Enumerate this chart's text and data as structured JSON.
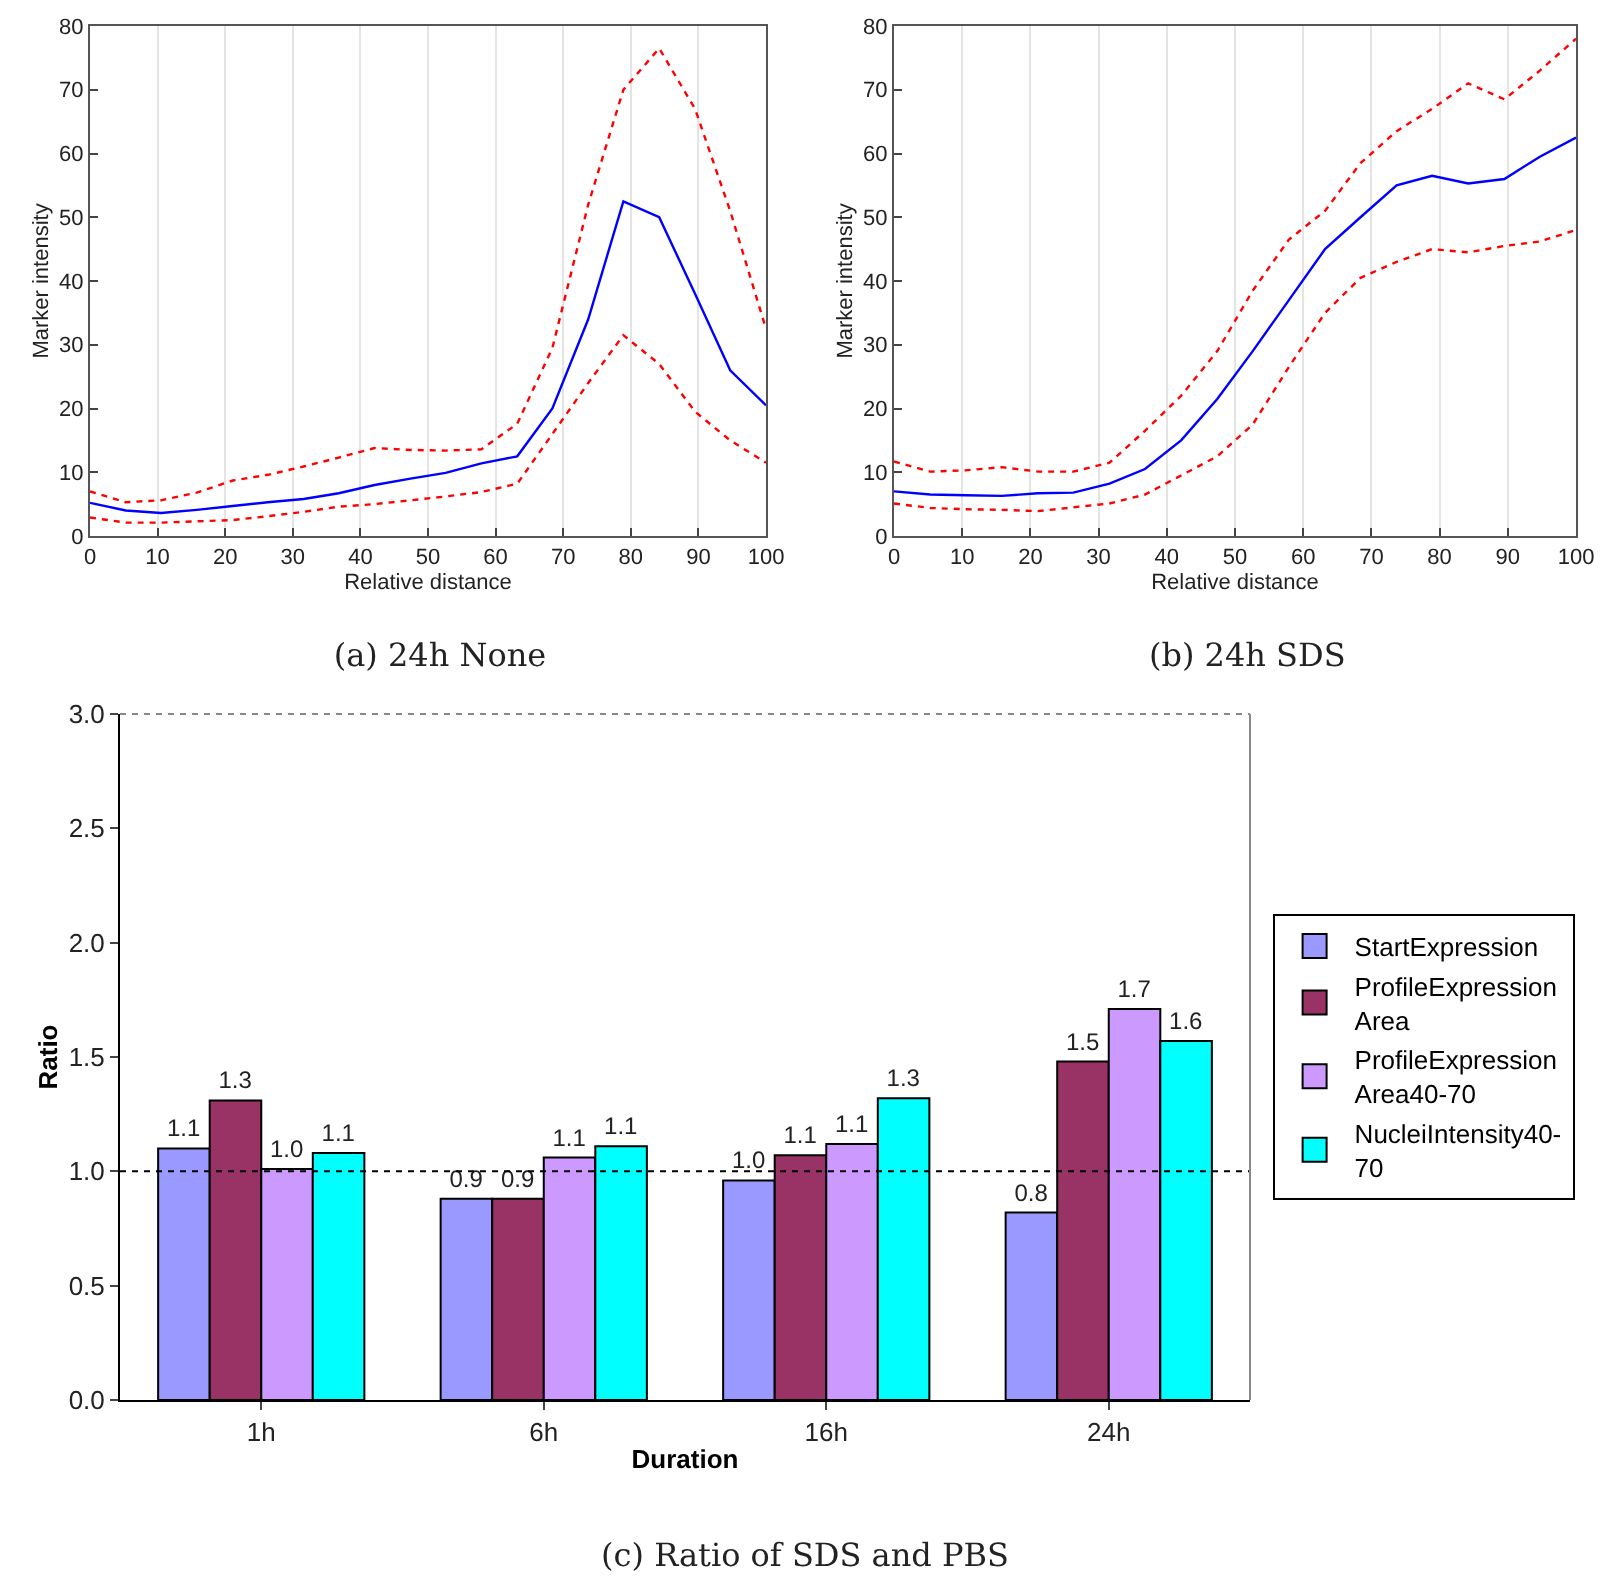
{
  "chart_data": [
    {
      "type": "line",
      "title": "(a) 24h None",
      "xlabel": "Relative distance",
      "ylabel": "Marker intensity",
      "x": [
        0,
        5.3,
        10.5,
        15.8,
        21.1,
        26.3,
        31.6,
        36.8,
        42.1,
        47.4,
        52.6,
        57.9,
        63.2,
        68.4,
        73.7,
        78.9,
        84.2,
        89.5,
        94.7,
        100
      ],
      "series": [
        {
          "color": "#ff0000",
          "line_style": "dotted",
          "values": [
            7.0,
            5.3,
            5.6,
            6.8,
            8.7,
            9.6,
            10.9,
            12.3,
            13.8,
            13.5,
            13.4,
            13.6,
            17.6,
            29.5,
            52,
            70,
            76.5,
            67,
            51,
            32.5
          ]
        },
        {
          "color": "#0000ff",
          "line_style": "solid",
          "values": [
            5.2,
            4.0,
            3.6,
            4.1,
            4.7,
            5.3,
            5.8,
            6.7,
            8.0,
            9.0,
            9.9,
            11.4,
            12.5,
            20,
            34,
            52.5,
            50,
            38,
            26,
            20.5
          ]
        },
        {
          "color": "#ff0000",
          "line_style": "dotted",
          "values": [
            2.9,
            2.1,
            2.1,
            2.3,
            2.5,
            3.1,
            3.8,
            4.6,
            5.0,
            5.6,
            6.2,
            6.9,
            8.2,
            16,
            24,
            31.5,
            27,
            19.5,
            15,
            11.5
          ]
        }
      ],
      "xlim": [
        0,
        100
      ],
      "xticks": [
        0,
        10,
        20,
        30,
        40,
        50,
        60,
        70,
        80,
        90,
        100
      ],
      "ylim": [
        0,
        80
      ],
      "yticks": [
        0,
        10,
        20,
        30,
        40,
        50,
        60,
        70,
        80
      ],
      "grid": "x",
      "legend": false
    },
    {
      "type": "line",
      "title": "(b) 24h SDS",
      "xlabel": "Relative distance",
      "ylabel": "Marker intensity",
      "x": [
        0,
        5.3,
        10.5,
        15.8,
        21.1,
        26.3,
        31.6,
        36.8,
        42.1,
        47.4,
        52.6,
        57.9,
        63.2,
        68.4,
        73.7,
        78.9,
        84.2,
        89.5,
        94.7,
        100
      ],
      "series": [
        {
          "color": "#ff0000",
          "line_style": "dotted",
          "values": [
            11.7,
            10.1,
            10.3,
            10.8,
            10.1,
            10.1,
            11.5,
            16.5,
            22,
            29,
            38.5,
            46.5,
            51,
            58.5,
            63.5,
            67,
            71,
            68.5,
            73,
            78
          ]
        },
        {
          "color": "#0000ff",
          "line_style": "solid",
          "values": [
            7,
            6.5,
            6.4,
            6.3,
            6.7,
            6.8,
            8.2,
            10.5,
            15,
            21.5,
            29,
            37,
            45,
            50,
            55,
            56.5,
            55.3,
            56,
            59.5,
            62.5
          ]
        },
        {
          "color": "#ff0000",
          "line_style": "dotted",
          "values": [
            5.1,
            4.4,
            4.2,
            4.1,
            3.9,
            4.5,
            5.1,
            6.5,
            9.5,
            12.5,
            17.5,
            26.5,
            35,
            40.5,
            43,
            45,
            44.5,
            45.5,
            46.2,
            48
          ]
        }
      ],
      "xlim": [
        0,
        100
      ],
      "xticks": [
        0,
        10,
        20,
        30,
        40,
        50,
        60,
        70,
        80,
        90,
        100
      ],
      "ylim": [
        0,
        80
      ],
      "yticks": [
        0,
        10,
        20,
        30,
        40,
        50,
        60,
        70,
        80
      ],
      "grid": "x",
      "legend": false
    },
    {
      "type": "bar",
      "title": "(c) Ratio of SDS and PBS",
      "xlabel": "Duration",
      "ylabel": "Ratio",
      "categories": [
        "1h",
        "6h",
        "16h",
        "24h"
      ],
      "series": [
        {
          "name": "StartExpression",
          "color": "#9999ff",
          "values": [
            1.1,
            0.88,
            0.96,
            0.82
          ],
          "value_labels": [
            "1.1",
            "0.9",
            "1.0",
            "0.8"
          ]
        },
        {
          "name": "ProfileExpressionArea",
          "color": "#993366",
          "values": [
            1.31,
            0.88,
            1.07,
            1.48
          ],
          "value_labels": [
            "1.3",
            "0.9",
            "1.1",
            "1.5"
          ]
        },
        {
          "name": "ProfileExpressionArea40-70",
          "color": "#cc99ff",
          "values": [
            1.01,
            1.06,
            1.12,
            1.71
          ],
          "value_labels": [
            "1.0",
            "1.1",
            "1.1",
            "1.7"
          ]
        },
        {
          "name": "NucleiIntensity40-70",
          "color": "#00ffff",
          "values": [
            1.08,
            1.11,
            1.32,
            1.57
          ],
          "value_labels": [
            "1.1",
            "1.1",
            "1.3",
            "1.6"
          ]
        }
      ],
      "ylim": [
        0,
        3
      ],
      "yticks": [
        {
          "value": 0,
          "label": "0.0"
        },
        0.5,
        {
          "value": 1,
          "label": "1.0"
        },
        1.5,
        {
          "value": 2,
          "label": "2.0"
        },
        2.5,
        {
          "value": 3,
          "label": "3.0"
        }
      ],
      "ref_lines": [
        {
          "axis": "y",
          "value": 1,
          "color": "#000000",
          "line_style": "dotted"
        }
      ],
      "grid": false,
      "legend": "right"
    }
  ]
}
